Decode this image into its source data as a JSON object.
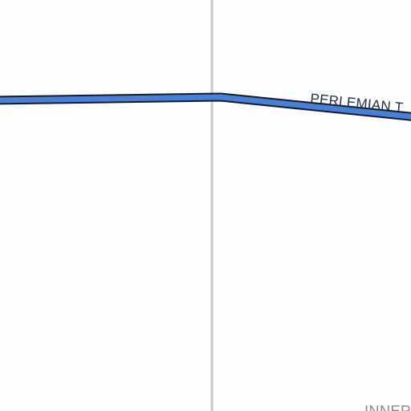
{
  "map": {
    "colors": {
      "background": "#fdfdfd",
      "boundary_line": "#c8c8c8",
      "road_fill": "#4a7fd4",
      "road_casing": "#111c2e",
      "road_label": "#1f2d45",
      "area_label": "#8a8a8a"
    },
    "road": {
      "label": "PERLEMIAN T"
    },
    "area_label": "INNER"
  }
}
